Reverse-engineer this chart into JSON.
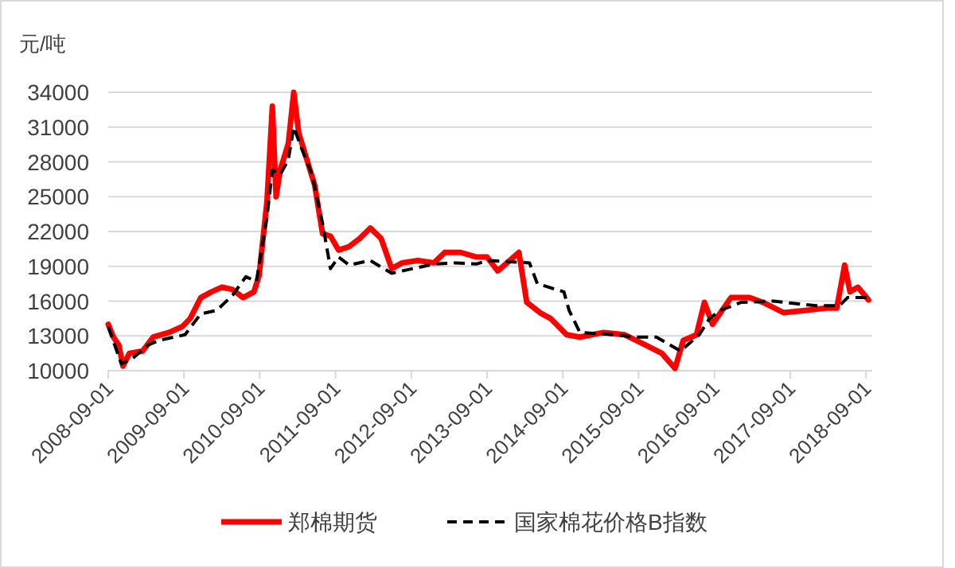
{
  "chart_data": {
    "type": "line",
    "ylabel": "元/吨",
    "xlim": [
      "2008-09-01",
      "2018-10-01"
    ],
    "ylim": [
      10000,
      34000
    ],
    "xticks": [
      "2008-09-01",
      "2009-09-01",
      "2010-09-01",
      "2011-09-01",
      "2012-09-01",
      "2013-09-01",
      "2014-09-01",
      "2015-09-01",
      "2016-09-01",
      "2017-09-01",
      "2018-09-01"
    ],
    "yticks": [
      10000,
      13000,
      16000,
      19000,
      22000,
      25000,
      28000,
      31000,
      34000
    ],
    "grid": "y",
    "legend": "bottom",
    "marker": "none",
    "series": [
      {
        "name": "郑棉期货",
        "color": "#ff0000",
        "line_style": "solid",
        "x": [
          "2008-09-01",
          "2008-09-26",
          "2008-10-22",
          "2008-11-11",
          "2008-12-12",
          "2009-02-14",
          "2009-04-06",
          "2009-06-21",
          "2009-08-24",
          "2009-10-01",
          "2009-11-21",
          "2010-01-11",
          "2010-03-03",
          "2010-04-23",
          "2010-06-13",
          "2010-08-04",
          "2010-08-29",
          "2010-10-06",
          "2010-11-01",
          "2010-11-19",
          "2010-12-09",
          "2011-01-17",
          "2011-02-12",
          "2011-03-08",
          "2011-04-16",
          "2011-05-24",
          "2011-07-01",
          "2011-08-08",
          "2011-09-16",
          "2011-11-06",
          "2011-12-27",
          "2012-02-16",
          "2012-04-08",
          "2012-05-29",
          "2012-07-19",
          "2012-10-03",
          "2012-12-19",
          "2013-02-09",
          "2013-04-26",
          "2013-07-12",
          "2013-09-01",
          "2013-10-22",
          "2014-02-01",
          "2014-03-11",
          "2014-05-14",
          "2014-07-04",
          "2014-09-19",
          "2014-11-22",
          "2015-03-16",
          "2015-06-26",
          "2015-10-06",
          "2015-12-22",
          "2016-02-24",
          "2016-04-03",
          "2016-06-06",
          "2016-07-14",
          "2016-08-22",
          "2016-11-19",
          "2017-02-17",
          "2017-04-21",
          "2017-08-01",
          "2017-11-11",
          "2018-02-21",
          "2018-04-13",
          "2018-05-21",
          "2018-06-16",
          "2018-07-24",
          "2018-09-13"
        ],
        "values": [
          14000,
          12900,
          12200,
          10400,
          11500,
          11700,
          12900,
          13300,
          13800,
          14500,
          16300,
          16800,
          17200,
          17000,
          16300,
          16800,
          18200,
          24600,
          32800,
          25000,
          27300,
          29600,
          34000,
          30500,
          28200,
          26000,
          21800,
          21600,
          20400,
          20700,
          21400,
          22300,
          21400,
          18800,
          19300,
          19500,
          19300,
          20200,
          20200,
          19800,
          19800,
          18600,
          20200,
          15900,
          15000,
          14500,
          13100,
          12900,
          13300,
          13100,
          12200,
          11500,
          10200,
          12600,
          13100,
          15900,
          14000,
          16300,
          16300,
          15900,
          15000,
          15200,
          15400,
          15400,
          19100,
          16800,
          17200,
          16100
        ]
      },
      {
        "name": "国家棉花价格B指数",
        "color": "#000000",
        "line_style": "dashed",
        "x": [
          "2008-09-01",
          "2008-11-03",
          "2008-12-24",
          "2009-03-11",
          "2009-05-01",
          "2009-07-17",
          "2009-09-06",
          "2009-11-21",
          "2010-02-06",
          "2010-04-23",
          "2010-06-26",
          "2010-08-16",
          "2010-10-06",
          "2010-11-01",
          "2010-12-09",
          "2011-01-17",
          "2011-02-12",
          "2011-03-21",
          "2011-05-11",
          "2011-07-01",
          "2011-08-08",
          "2011-09-16",
          "2011-11-06",
          "2012-02-16",
          "2012-05-29",
          "2012-09-08",
          "2012-12-19",
          "2013-03-31",
          "2013-07-12",
          "2013-09-01",
          "2013-12-12",
          "2014-03-24",
          "2014-05-01",
          "2014-09-06",
          "2014-10-01",
          "2014-11-22",
          "2015-05-07",
          "2015-08-16",
          "2015-11-26",
          "2016-03-21",
          "2016-06-19",
          "2016-08-08",
          "2016-09-28",
          "2017-01-09",
          "2017-06-11",
          "2018-01-02",
          "2018-04-26",
          "2018-06-04",
          "2018-09-13"
        ],
        "values": [
          13800,
          10600,
          11000,
          12200,
          12600,
          12900,
          13100,
          14900,
          15200,
          16500,
          18100,
          17700,
          23200,
          27300,
          26900,
          28200,
          31000,
          29200,
          26900,
          22700,
          18800,
          19800,
          19100,
          19500,
          18400,
          18800,
          19200,
          19300,
          19200,
          19500,
          19400,
          19300,
          17500,
          16800,
          15200,
          13300,
          13100,
          12900,
          12900,
          11700,
          13100,
          14500,
          15200,
          15900,
          16000,
          15600,
          15600,
          16300,
          16300
        ]
      }
    ]
  }
}
